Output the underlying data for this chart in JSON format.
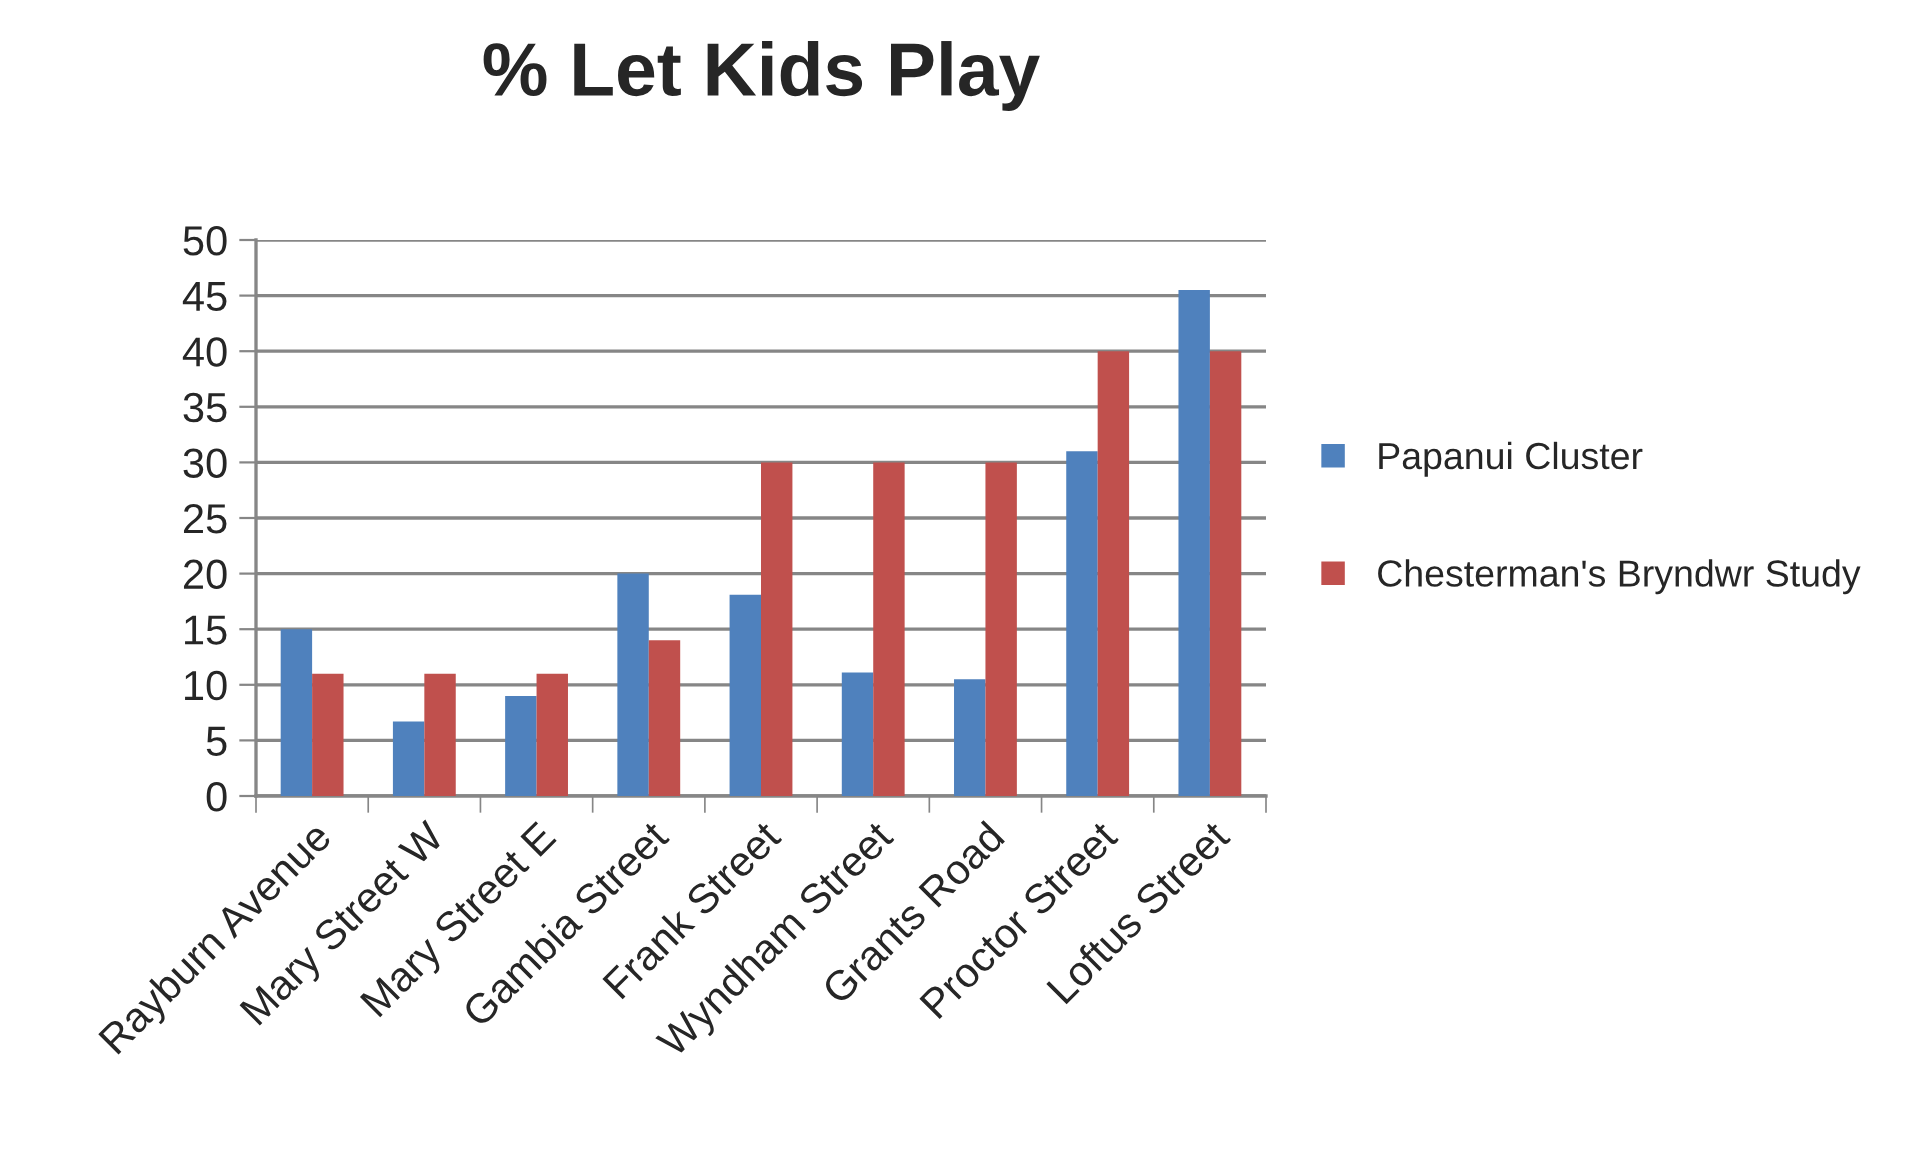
{
  "chart_data": {
    "type": "bar",
    "title": "% Let Kids Play",
    "categories": [
      "Rayburn Avenue",
      "Mary Street W",
      "Mary Street E",
      "Gambia Street",
      "Frank Street",
      "Wyndham Street",
      "Grants Road",
      "Proctor Street",
      "Loftus Street"
    ],
    "series": [
      {
        "name": "Papanui Cluster",
        "color": "#4f81bd",
        "values": [
          15,
          6.7,
          9,
          20,
          18.1,
          11.1,
          10.5,
          31,
          45.5
        ]
      },
      {
        "name": "Chesterman's Bryndwr Study",
        "color": "#c0504d",
        "values": [
          11,
          11,
          11,
          14,
          30,
          30,
          30,
          40,
          40
        ]
      }
    ],
    "ylim": [
      0,
      50
    ],
    "yticks": [
      0,
      5,
      10,
      15,
      20,
      25,
      30,
      35,
      40,
      45,
      50
    ],
    "grid": "y",
    "legend": "right"
  }
}
